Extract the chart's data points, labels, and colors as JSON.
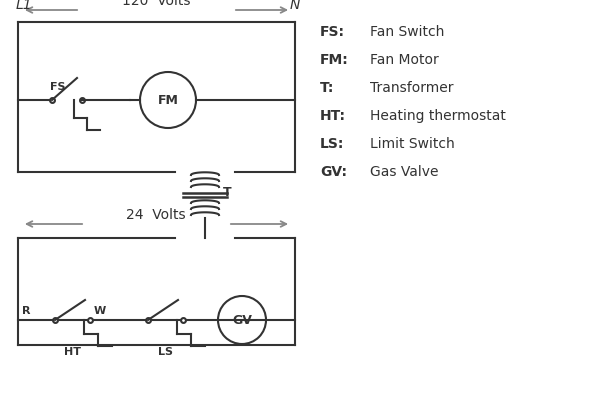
{
  "bg_color": "#ffffff",
  "line_color": "#333333",
  "arrow_color": "#888888",
  "legend": [
    [
      "FS:",
      "Fan Switch"
    ],
    [
      "FM:",
      "Fan Motor"
    ],
    [
      "T:",
      "Transformer"
    ],
    [
      "HT:",
      "Heating thermostat"
    ],
    [
      "LS:",
      "Limit Switch"
    ],
    [
      "GV:",
      "Gas Valve"
    ]
  ]
}
